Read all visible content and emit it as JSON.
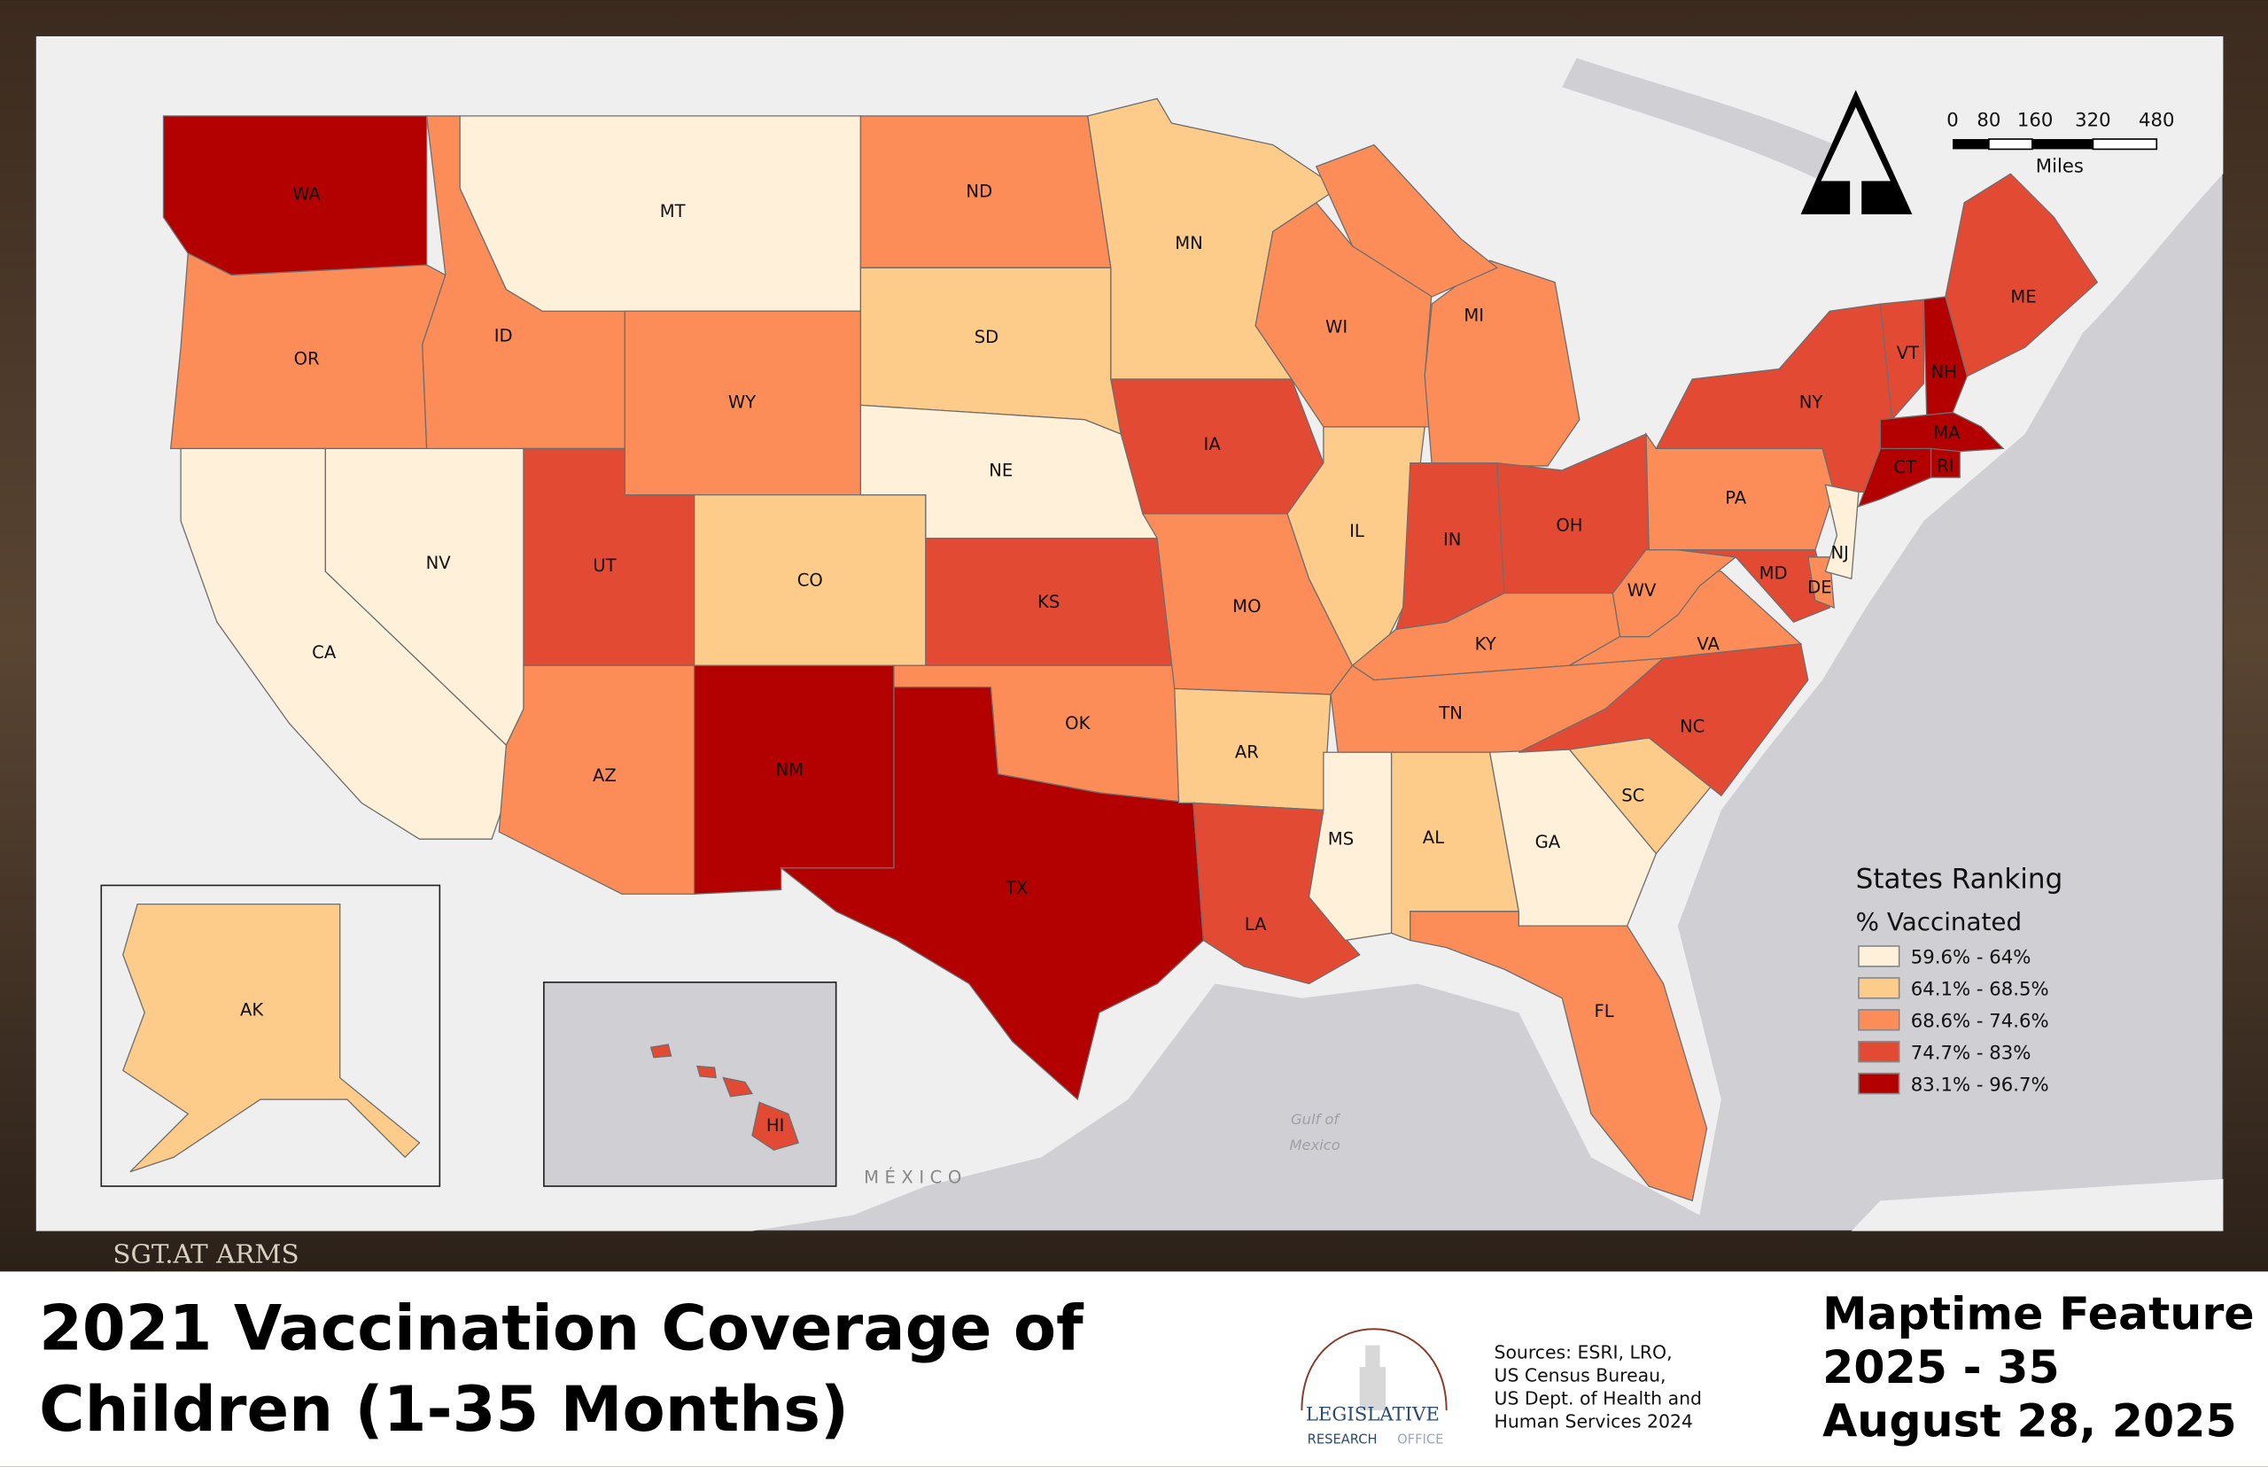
{
  "title_lines": [
    "2021 Vaccination Coverage of",
    "Children (1-35 Months)"
  ],
  "feature_lines": [
    "Maptime Feature",
    "2025 - 35",
    "August 28, 2025"
  ],
  "sources_lines": [
    "Sources:  ESRI, LRO,",
    "US Census Bureau,",
    "US Dept. of Health and",
    "Human Services 2024"
  ],
  "logo": {
    "line1": "LEGISLATIVE",
    "line2a": "RESEARCH",
    "line2b": "OFFICE"
  },
  "background_sign": "SGT.AT ARMS",
  "legend": {
    "title": "States Ranking",
    "subtitle": "% Vaccinated",
    "bins": [
      {
        "label": "59.6% - 64%",
        "color": "#fef0d9"
      },
      {
        "label": "64.1% - 68.5%",
        "color": "#fdcc8a"
      },
      {
        "label": "68.6% - 74.6%",
        "color": "#fc8d59"
      },
      {
        "label": "74.7% - 83%",
        "color": "#e34a33"
      },
      {
        "label": "83.1% - 96.7%",
        "color": "#b30000"
      }
    ]
  },
  "scale_bar": {
    "ticks": [
      "0",
      "80",
      "160",
      "320",
      "480"
    ],
    "unit": "Miles"
  },
  "map_labels": {
    "gulf_line1": "Gulf of",
    "gulf_line2": "Mexico",
    "mexico": "MÉXICO"
  },
  "states": [
    {
      "abbr": "WA",
      "bin": 4
    },
    {
      "abbr": "OR",
      "bin": 2
    },
    {
      "abbr": "CA",
      "bin": 0
    },
    {
      "abbr": "NV",
      "bin": 0
    },
    {
      "abbr": "ID",
      "bin": 2
    },
    {
      "abbr": "MT",
      "bin": 0
    },
    {
      "abbr": "WY",
      "bin": 2
    },
    {
      "abbr": "UT",
      "bin": 3
    },
    {
      "abbr": "CO",
      "bin": 1
    },
    {
      "abbr": "AZ",
      "bin": 2
    },
    {
      "abbr": "NM",
      "bin": 4
    },
    {
      "abbr": "ND",
      "bin": 2
    },
    {
      "abbr": "SD",
      "bin": 1
    },
    {
      "abbr": "NE",
      "bin": 0
    },
    {
      "abbr": "KS",
      "bin": 3
    },
    {
      "abbr": "OK",
      "bin": 2
    },
    {
      "abbr": "TX",
      "bin": 4
    },
    {
      "abbr": "MN",
      "bin": 1
    },
    {
      "abbr": "IA",
      "bin": 3
    },
    {
      "abbr": "MO",
      "bin": 2
    },
    {
      "abbr": "AR",
      "bin": 1
    },
    {
      "abbr": "LA",
      "bin": 3
    },
    {
      "abbr": "WI",
      "bin": 2
    },
    {
      "abbr": "IL",
      "bin": 1
    },
    {
      "abbr": "MI",
      "bin": 2
    },
    {
      "abbr": "IN",
      "bin": 3
    },
    {
      "abbr": "OH",
      "bin": 3
    },
    {
      "abbr": "KY",
      "bin": 2
    },
    {
      "abbr": "TN",
      "bin": 2
    },
    {
      "abbr": "MS",
      "bin": 0
    },
    {
      "abbr": "AL",
      "bin": 1
    },
    {
      "abbr": "GA",
      "bin": 0
    },
    {
      "abbr": "FL",
      "bin": 2
    },
    {
      "abbr": "SC",
      "bin": 1
    },
    {
      "abbr": "NC",
      "bin": 3
    },
    {
      "abbr": "VA",
      "bin": 2
    },
    {
      "abbr": "WV",
      "bin": 2
    },
    {
      "abbr": "PA",
      "bin": 2
    },
    {
      "abbr": "NY",
      "bin": 3
    },
    {
      "abbr": "MD",
      "bin": 3
    },
    {
      "abbr": "DE",
      "bin": 2
    },
    {
      "abbr": "NJ",
      "bin": 0
    },
    {
      "abbr": "VT",
      "bin": 3
    },
    {
      "abbr": "NH",
      "bin": 4
    },
    {
      "abbr": "ME",
      "bin": 3
    },
    {
      "abbr": "MA",
      "bin": 4
    },
    {
      "abbr": "CT",
      "bin": 4
    },
    {
      "abbr": "RI",
      "bin": 4
    },
    {
      "abbr": "AK",
      "bin": 1
    },
    {
      "abbr": "HI",
      "bin": 3
    }
  ]
}
